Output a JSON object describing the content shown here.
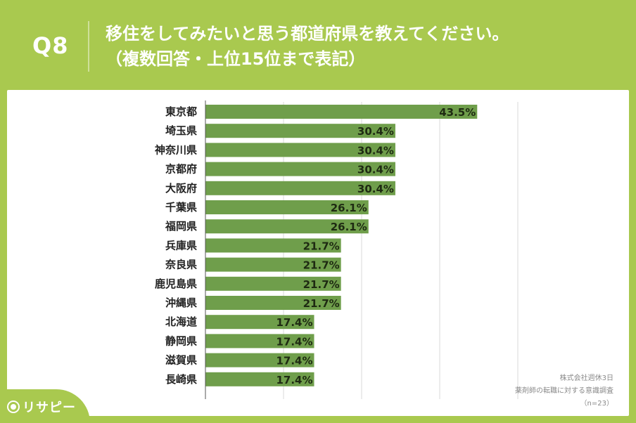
{
  "header": {
    "q_number": "Q8",
    "question_line1": "移住をしてみたいと思う都道府県を教えてください。",
    "question_line2": "（複数回答・上位15位まで表記）"
  },
  "credit": {
    "company": "株式会社週休3日",
    "survey": "薬剤師の転職に対する意識調査",
    "n": "（n=23）"
  },
  "logo": {
    "text": "リサピー",
    "icon": "pin-icon"
  },
  "colors": {
    "background": "#a9c94f",
    "bar": "#6f9e4b",
    "card": "#ffffff",
    "grid": "#d9d9d9"
  },
  "chart_data": {
    "type": "bar",
    "orientation": "horizontal",
    "title": "",
    "xlabel": "",
    "ylabel": "",
    "xlim": [
      0,
      50
    ],
    "grid": true,
    "categories": [
      "東京都",
      "埼玉県",
      "神奈川県",
      "京都府",
      "大阪府",
      "千葉県",
      "福岡県",
      "兵庫県",
      "奈良県",
      "鹿児島県",
      "沖縄県",
      "北海道",
      "静岡県",
      "滋賀県",
      "長崎県"
    ],
    "values": [
      43.5,
      30.4,
      30.4,
      30.4,
      30.4,
      26.1,
      26.1,
      21.7,
      21.7,
      21.7,
      21.7,
      17.4,
      17.4,
      17.4,
      17.4
    ],
    "value_labels": [
      "43.5%",
      "30.4%",
      "30.4%",
      "30.4%",
      "30.4%",
      "26.1%",
      "26.1%",
      "21.7%",
      "21.7%",
      "21.7%",
      "21.7%",
      "17.4%",
      "17.4%",
      "17.4%",
      "17.4%"
    ]
  }
}
